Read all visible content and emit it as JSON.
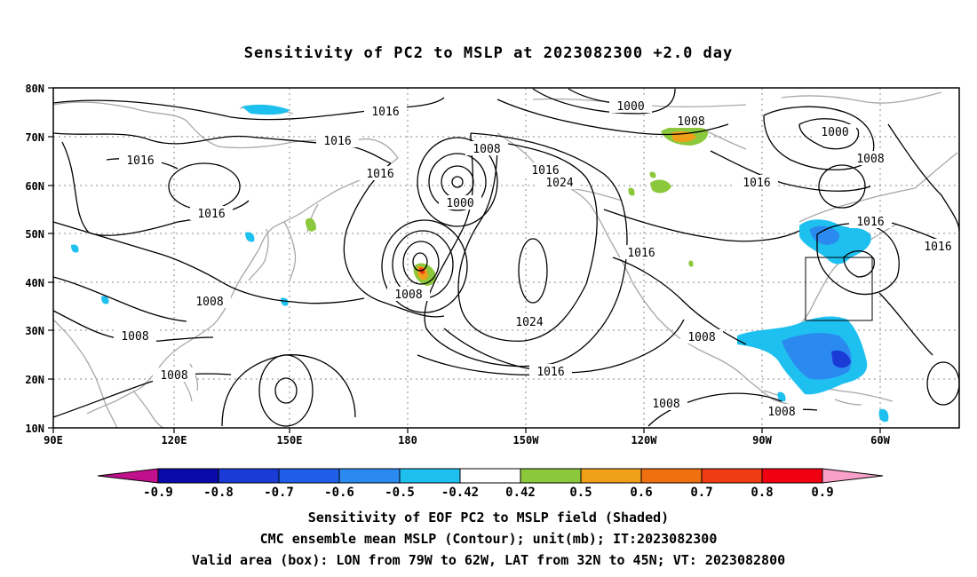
{
  "title": "Sensitivity of PC2 to MSLP at 2023082300 +2.0 day",
  "axes": {
    "lat_labels": [
      "80N",
      "70N",
      "60N",
      "50N",
      "40N",
      "30N",
      "20N",
      "10N"
    ],
    "lon_labels": [
      "90E",
      "120E",
      "150E",
      "180",
      "150W",
      "120W",
      "90W",
      "60W"
    ]
  },
  "contour_labels": [
    "1016",
    "1016",
    "1016",
    "1016",
    "1016",
    "1008",
    "1000",
    "1008",
    "1016",
    "1024",
    "1000",
    "1008",
    "1016",
    "1000",
    "1008",
    "1016",
    "1016",
    "1016",
    "1008",
    "1008",
    "1008",
    "1024",
    "1016",
    "1008",
    "1008",
    "1008",
    "1008"
  ],
  "colorbar": {
    "labels": [
      "-0.9",
      "-0.8",
      "-0.7",
      "-0.6",
      "-0.5",
      "-0.42",
      "0.42",
      "0.5",
      "0.6",
      "0.7",
      "0.8",
      "0.9"
    ],
    "colors": [
      "#c0108c",
      "#0a0aa8",
      "#1b3bd6",
      "#1f5fe8",
      "#2b8af0",
      "#1ec0f0",
      "#ffffff",
      "#8cc83c",
      "#f0a018",
      "#f07010",
      "#f03c14",
      "#f00010",
      "#f8a0c8"
    ]
  },
  "shading_colors": {
    "blue_light": "#1ec0f0",
    "blue_mid": "#2b8af0",
    "blue_dark": "#1b3bd6",
    "green": "#8cc83c",
    "orange": "#f0a018",
    "red": "#f03c14"
  },
  "captions": [
    "Sensitivity of EOF PC2 to MSLP field (Shaded)",
    "CMC ensemble mean MSLP (Contour); unit(mb); IT:2023082300",
    "Valid area (box): LON from 79W to 62W, LAT from 32N to 45N; VT: 2023082800"
  ]
}
